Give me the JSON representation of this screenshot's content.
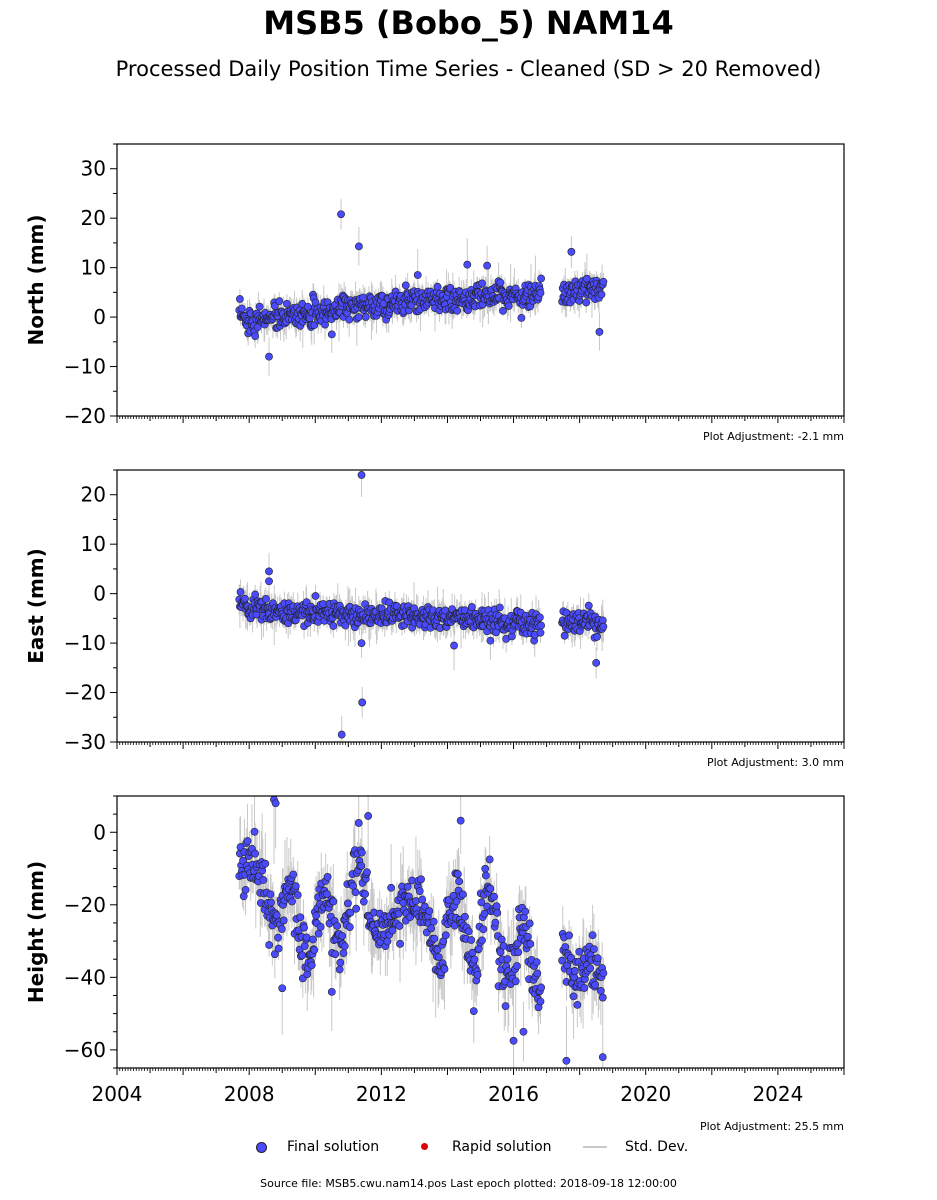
{
  "title": "MSB5 (Bobo_5) NAM14",
  "subtitle": "Processed Daily Position Time Series - Cleaned (SD > 20 Removed)",
  "legend": {
    "final_label": "Final solution",
    "rapid_label": "Rapid solution",
    "std_label": "Std. Dev.",
    "final_color": "#4a4aff",
    "rapid_color": "#dd0000",
    "std_color": "#c8c8c8"
  },
  "source_text": "Source file: MSB5.cwu.nam14.pos  Last epoch plotted: 2018-09-18 12:00:00",
  "chart_data": [
    {
      "type": "scatter",
      "ylabel": "North (mm)",
      "ylim": [
        -20,
        35
      ],
      "yticks": [
        30,
        20,
        10,
        0,
        -10,
        -20
      ],
      "ytick_labels": [
        "30",
        "20",
        "10",
        "0",
        "−10",
        "−20"
      ],
      "xlim": [
        2004,
        2026
      ],
      "adjustment": "Plot Adjustment: -2.1 mm",
      "gaps": [
        [
          2016.85,
          2017.45
        ]
      ],
      "series": [
        {
          "x": [
            2007.7,
            2008.0,
            2009.0,
            2010.0,
            2011.0,
            2012.0,
            2013.0,
            2014.0,
            2015.0,
            2016.0,
            2016.85,
            2017.45,
            2018.0,
            2018.72
          ],
          "y": [
            0,
            -0.5,
            0,
            1,
            2,
            2.5,
            3,
            3.5,
            3.8,
            4.3,
            4.5,
            5,
            5.3,
            5.5
          ]
        }
      ],
      "outliers": [
        [
          2010.78,
          20.8
        ],
        [
          2011.32,
          14.3
        ],
        [
          2008.6,
          -8
        ],
        [
          2017.75,
          13.2
        ],
        [
          2014.6,
          10.6
        ],
        [
          2015.2,
          10.4
        ],
        [
          2013.1,
          8.5
        ],
        [
          2018.6,
          -3
        ],
        [
          2010.5,
          -3.5
        ]
      ]
    },
    {
      "type": "scatter",
      "ylabel": "East (mm)",
      "ylim": [
        -30,
        25
      ],
      "yticks": [
        20,
        10,
        0,
        -10,
        -20,
        -30
      ],
      "ytick_labels": [
        "20",
        "10",
        "0",
        "−10",
        "−20",
        "−30"
      ],
      "xlim": [
        2004,
        2026
      ],
      "adjustment": "Plot Adjustment: 3.0 mm",
      "gaps": [
        [
          2016.85,
          2017.45
        ]
      ],
      "series": [
        {
          "x": [
            2007.7,
            2008.0,
            2009.0,
            2010.0,
            2011.0,
            2012.0,
            2013.0,
            2014.0,
            2015.0,
            2016.0,
            2016.85,
            2017.45,
            2018.0,
            2018.72
          ],
          "y": [
            -1,
            -2.5,
            -3.5,
            -4,
            -4.5,
            -4.5,
            -4.5,
            -5,
            -5.2,
            -5.8,
            -6.5,
            -6,
            -6,
            -6.5
          ]
        }
      ],
      "outliers": [
        [
          2011.4,
          24
        ],
        [
          2010.8,
          -28.5
        ],
        [
          2011.42,
          -22
        ],
        [
          2011.4,
          -10
        ],
        [
          2008.6,
          4.5
        ],
        [
          2008.6,
          2.5
        ],
        [
          2018.5,
          -14
        ],
        [
          2014.2,
          -10.5
        ],
        [
          2015.3,
          -9.5
        ]
      ]
    },
    {
      "type": "scatter",
      "ylabel": "Height (mm)",
      "ylim": [
        -65,
        10
      ],
      "yticks": [
        0,
        -20,
        -40,
        -60
      ],
      "ytick_labels": [
        "0",
        "−20",
        "−40",
        "−60"
      ],
      "xlim": [
        2004,
        2026
      ],
      "xticks": [
        2004,
        2008,
        2012,
        2016,
        2020,
        2024
      ],
      "xtick_labels": [
        "2004",
        "2008",
        "2012",
        "2016",
        "2020",
        "2024"
      ],
      "adjustment": "Plot Adjustment: 25.5 mm",
      "gaps": [
        [
          2016.85,
          2017.45
        ]
      ],
      "series": [
        {
          "x": [
            2007.7,
            2008.3,
            2008.8,
            2009.3,
            2009.8,
            2010.3,
            2010.8,
            2011.3,
            2011.8,
            2012.3,
            2012.8,
            2013.3,
            2013.8,
            2014.3,
            2014.8,
            2015.3,
            2015.8,
            2016.3,
            2016.85,
            2017.45,
            2017.9,
            2018.3,
            2018.72
          ],
          "y": [
            -2,
            -15,
            -22,
            -20,
            -32,
            -22,
            -28,
            -12,
            -22,
            -30,
            -12,
            -27,
            -32,
            -20,
            -34,
            -20,
            -38,
            -32,
            -42,
            -30,
            -40,
            -38,
            -35
          ]
        }
      ],
      "outliers": [
        [
          2008.75,
          9
        ],
        [
          2008.8,
          8
        ],
        [
          2014.4,
          3.2
        ],
        [
          2011.6,
          4.5
        ],
        [
          2016.0,
          -57.5
        ],
        [
          2017.6,
          -63
        ],
        [
          2018.7,
          -62
        ],
        [
          2016.3,
          -55
        ],
        [
          2010.5,
          -44
        ],
        [
          2009.0,
          -43
        ]
      ]
    }
  ]
}
